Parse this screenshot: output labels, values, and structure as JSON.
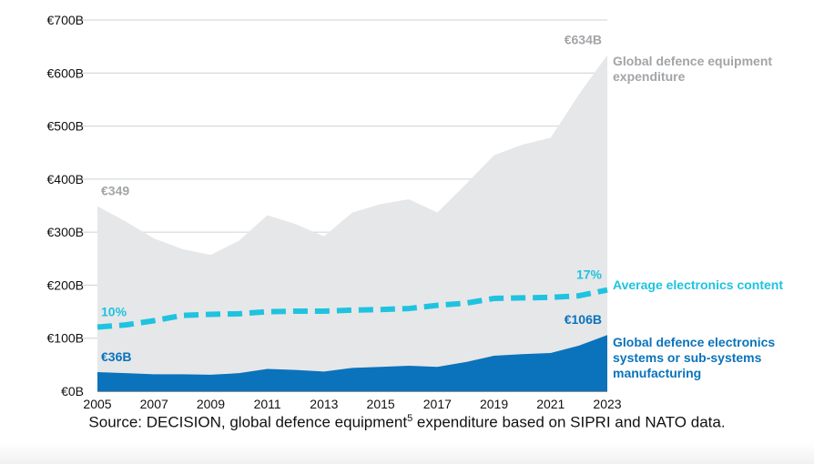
{
  "chart_data": {
    "type": "area",
    "x": [
      2005,
      2006,
      2007,
      2008,
      2009,
      2010,
      2011,
      2012,
      2013,
      2014,
      2015,
      2016,
      2017,
      2018,
      2019,
      2020,
      2021,
      2022,
      2023
    ],
    "series": [
      {
        "name": "Global defence equipment expenditure",
        "kind": "area",
        "color": "#e6e7e9",
        "values": [
          349,
          320,
          288,
          268,
          257,
          284,
          332,
          315,
          292,
          337,
          353,
          362,
          337,
          390,
          445,
          465,
          478,
          560,
          634
        ]
      },
      {
        "name": "Global defence electronics systems or sub-systems manufacturing",
        "kind": "area",
        "color": "#0a73bb",
        "values": [
          36,
          34,
          32,
          32,
          31,
          34,
          42,
          40,
          37,
          44,
          46,
          48,
          46,
          55,
          67,
          70,
          72,
          86,
          106
        ]
      },
      {
        "name": "Average electronics content",
        "kind": "dashed-line",
        "color": "#1fc3df",
        "values": [
          121,
          125,
          133,
          143,
          145,
          146,
          150,
          151,
          151,
          153,
          154,
          156,
          162,
          166,
          175,
          176,
          177,
          180,
          191
        ]
      }
    ],
    "ylim": [
      0,
      700
    ],
    "yticks": [
      0,
      100,
      200,
      300,
      400,
      500,
      600,
      700
    ],
    "ytick_labels": [
      "€0B",
      "€100B",
      "€200B",
      "€300B",
      "€400B",
      "€500B",
      "€600B",
      "€700B"
    ],
    "xticks": [
      2005,
      2007,
      2009,
      2011,
      2013,
      2015,
      2017,
      2019,
      2021,
      2023
    ],
    "xtick_labels": [
      "2005",
      "2007",
      "2009",
      "2011",
      "2013",
      "2015",
      "2017",
      "2019",
      "2021",
      "2023"
    ],
    "grid": true,
    "annotations": [
      {
        "text": "€349",
        "x": 2005,
        "y": 349,
        "color": "#a2a4a7"
      },
      {
        "text": "€634B",
        "x": 2023,
        "y": 634,
        "color": "#a2a4a7"
      },
      {
        "text": "10%",
        "x": 2005,
        "y": 121,
        "color": "#1fc3df"
      },
      {
        "text": "17%",
        "x": 2023,
        "y": 191,
        "color": "#1fc3df"
      },
      {
        "text": "€36B",
        "x": 2005,
        "y": 36,
        "color": "#0a73bb"
      },
      {
        "text": "€106B",
        "x": 2023,
        "y": 106,
        "color": "#0a73bb"
      }
    ],
    "legend": [
      {
        "lines": [
          "Global defence equipment",
          "expenditure"
        ],
        "color": "#a2a4a7"
      },
      {
        "lines": [
          "Average electronics content"
        ],
        "color": "#1fc3df"
      },
      {
        "lines": [
          "Global defence electronics",
          "systems or sub-systems",
          "manufacturing"
        ],
        "color": "#0a73bb"
      }
    ],
    "legend_placement": "right"
  },
  "source": {
    "before": "Source: DECISION, global defence equipment",
    "sup": "5",
    "after": " expenditure based on SIPRI and NATO data."
  }
}
